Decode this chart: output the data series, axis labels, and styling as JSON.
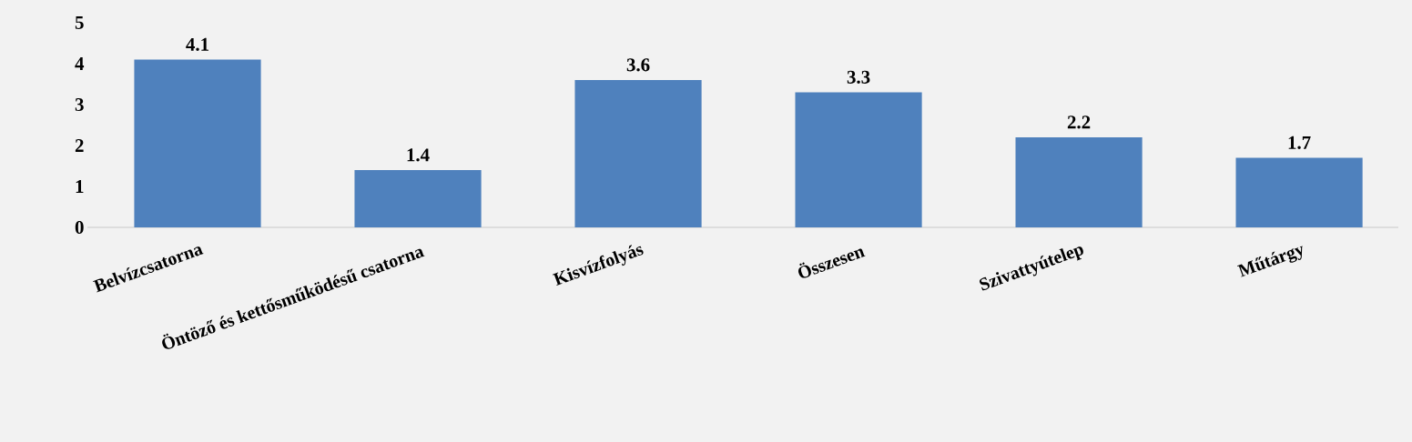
{
  "chart_data": {
    "type": "bar",
    "categories": [
      "Belvízcsatorna",
      "Öntöző és kettősműködésű csatorna",
      "Kisvízfolyás",
      "Összesen",
      "Szivattyútelep",
      "Műtárgy"
    ],
    "values": [
      4.1,
      1.4,
      3.6,
      3.3,
      2.2,
      1.7
    ],
    "color": "#4f81bd",
    "ylim": [
      0,
      5
    ],
    "yticks": [
      0,
      1,
      2,
      3,
      4,
      5
    ],
    "data_labels": true
  }
}
